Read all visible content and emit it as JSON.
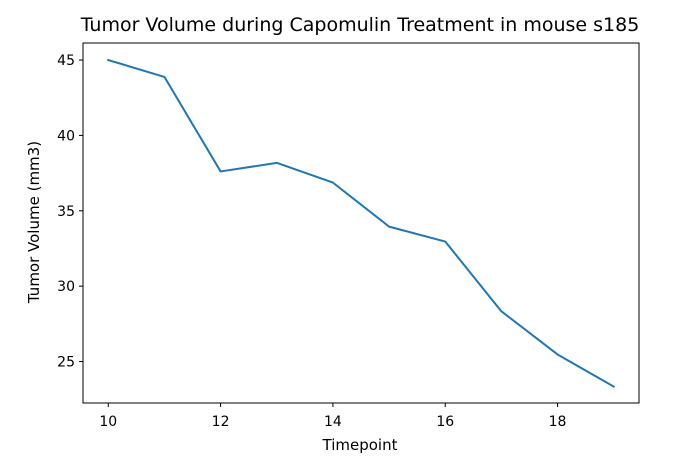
{
  "chart_data": {
    "type": "line",
    "title": "Tumor Volume during Capomulin Treatment in mouse s185",
    "xlabel": "Timepoint",
    "ylabel": "Tumor Volume (mm3)",
    "xlim": [
      9.55,
      19.45
    ],
    "ylim": [
      22.25,
      46.13
    ],
    "xticks": [
      10,
      12,
      14,
      16,
      18
    ],
    "yticks": [
      25,
      30,
      35,
      40,
      45
    ],
    "grid": false,
    "series": [
      {
        "color": "#1f77b4",
        "x": [
          10,
          11,
          12,
          13,
          14,
          15,
          16,
          17,
          18,
          19
        ],
        "y": [
          45.0,
          43.88,
          37.61,
          38.18,
          36.87,
          33.95,
          32.96,
          28.33,
          25.47,
          23.34
        ]
      }
    ]
  }
}
